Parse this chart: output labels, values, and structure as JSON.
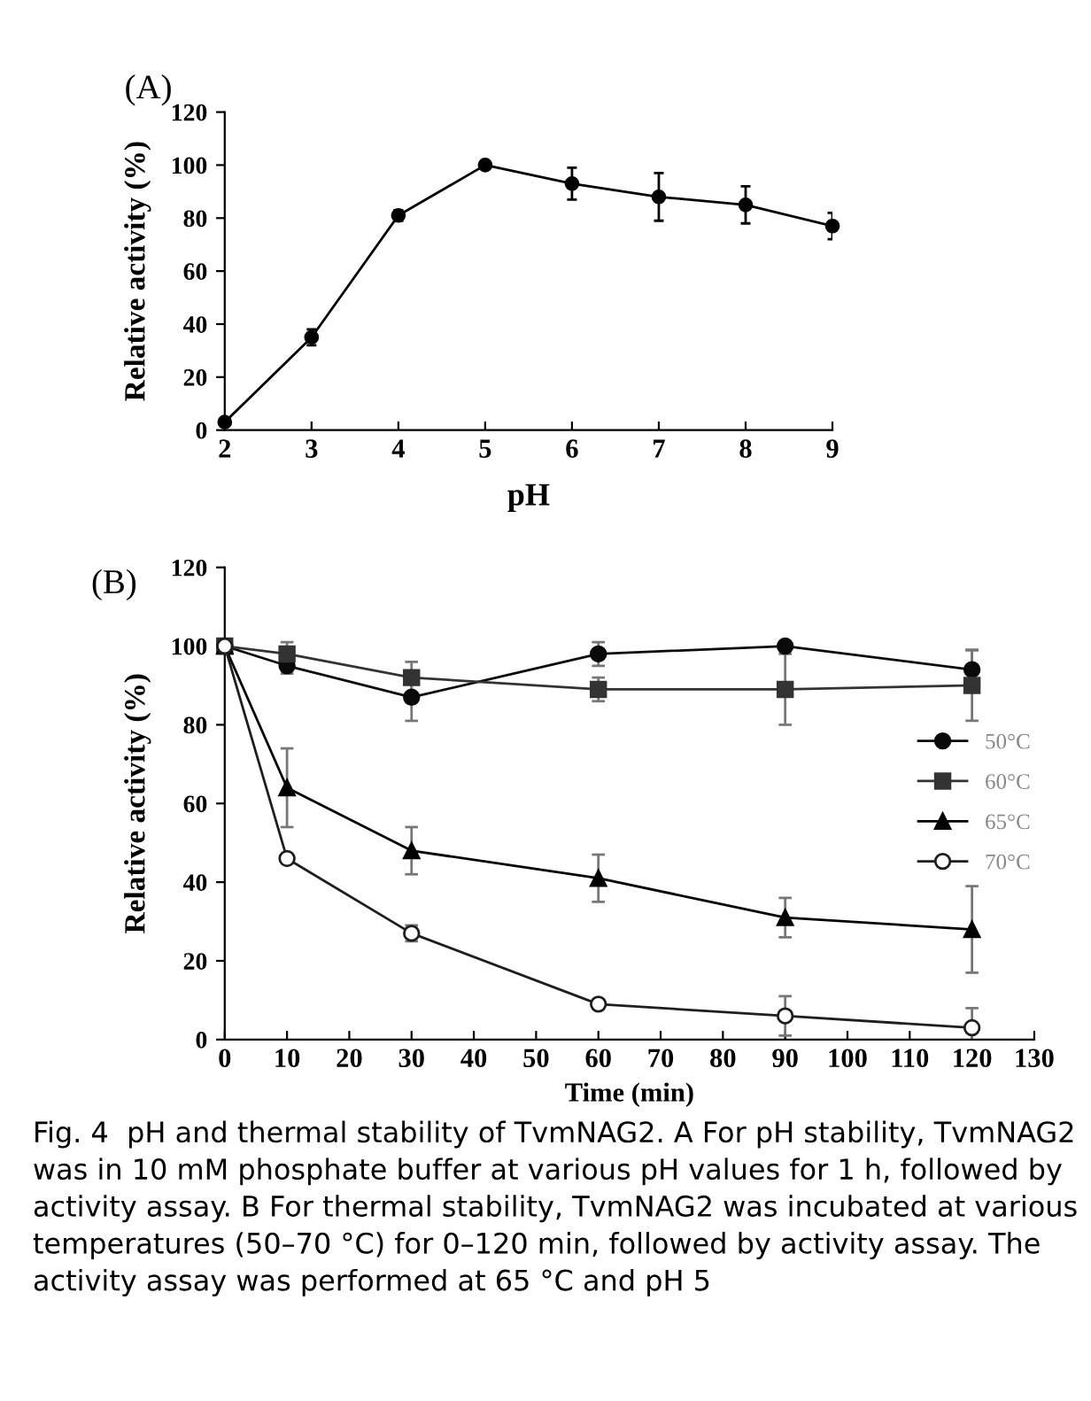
{
  "chart_data": [
    {
      "type": "line",
      "title": "(A)",
      "xlabel": "pH",
      "ylabel": "Relative activity (%)",
      "x": [
        2,
        3,
        4,
        5,
        6,
        7,
        8,
        9
      ],
      "series": [
        {
          "color": "#000000",
          "values": [
            3,
            35,
            81,
            100,
            93,
            88,
            85,
            77
          ],
          "errors": [
            null,
            3,
            2,
            null,
            6,
            9,
            7,
            5
          ]
        }
      ],
      "xlim": [
        2,
        9
      ],
      "xticks": [
        2,
        3,
        4,
        5,
        6,
        7,
        8,
        9
      ],
      "ylim": [
        0,
        120
      ],
      "yticks": [
        0,
        20,
        40,
        60,
        80,
        100,
        120
      ],
      "marker": "circle",
      "line_style": "solid",
      "grid": false,
      "legend": false
    },
    {
      "type": "line",
      "title": "(B)",
      "xlabel": "Time (min)",
      "ylabel": "Relative activity (%)",
      "x": [
        0,
        10,
        30,
        60,
        90,
        120
      ],
      "series": [
        {
          "name": "50°C",
          "color": "#0a0a0a",
          "marker": "circle",
          "values": [
            100,
            95,
            87,
            98,
            100,
            94
          ],
          "errors": [
            null,
            2,
            6,
            3,
            null,
            5
          ]
        },
        {
          "name": "60°C",
          "color": "#333333",
          "marker": "square",
          "values": [
            100,
            98,
            92,
            89,
            89,
            90
          ],
          "errors": [
            null,
            3,
            4,
            3,
            9,
            9
          ]
        },
        {
          "name": "65°C",
          "color": "#000000",
          "marker": "triangle",
          "values": [
            100,
            64,
            48,
            41,
            31,
            28
          ],
          "errors": [
            null,
            10,
            6,
            6,
            5,
            11
          ]
        },
        {
          "name": "70°C",
          "color": "#1e1e1e",
          "marker": "circle",
          "values": [
            100,
            46,
            27,
            9,
            6,
            3
          ],
          "errors": [
            null,
            null,
            2,
            null,
            5,
            5
          ]
        }
      ],
      "xlim": [
        0,
        130
      ],
      "xticks": [
        0,
        10,
        20,
        30,
        40,
        50,
        60,
        70,
        80,
        90,
        100,
        110,
        120,
        130
      ],
      "ylim": [
        0,
        120
      ],
      "yticks": [
        0,
        20,
        40,
        60,
        80,
        100,
        120
      ],
      "line_style": "solid",
      "grid": false,
      "legend": "right",
      "annotations": [
        "Fig. 4  pH and thermal stability of TvmNAG2. A For pH stability, TvmNAG2 was in 10 mM phosphate buffer at various pH values for 1 h, followed by activity assay. B For thermal stability, TvmNAG2 was incubated at various temperatures (50–70 °C) for 0–120 min, followed by activity assay. The activity assay was performed at 65 °C and pH 5"
      ]
    }
  ]
}
